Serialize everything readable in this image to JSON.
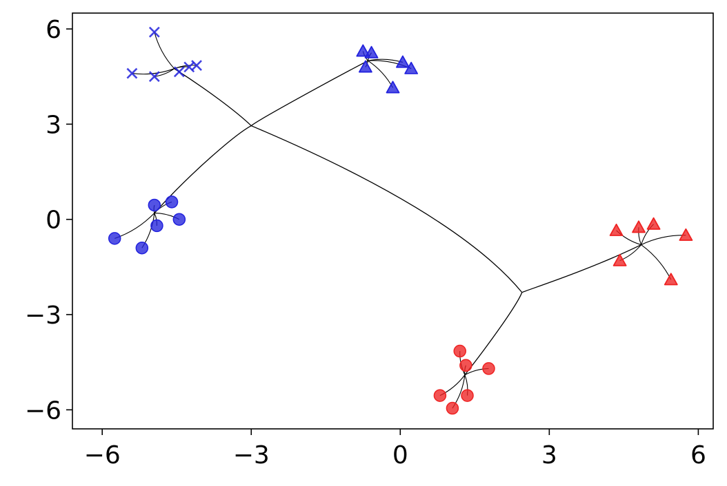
{
  "chart_data": {
    "type": "scatter",
    "xlim": [
      -6.6,
      6.3
    ],
    "ylim": [
      -6.6,
      6.5
    ],
    "xticks": [
      -6,
      -3,
      0,
      3,
      6
    ],
    "yticks": [
      -6,
      -3,
      0,
      3,
      6
    ],
    "xtick_labels": [
      "−6",
      "−3",
      "0",
      "3",
      "6"
    ],
    "ytick_labels": [
      "−6",
      "−3",
      "0",
      "3",
      "6"
    ],
    "grid": false,
    "colors": {
      "blue": "#2222dd",
      "red": "#ee2222",
      "tree": "#000000"
    },
    "series": [
      {
        "marker": "x",
        "color": "#2222dd",
        "hub": [
          -4.55,
          4.75
        ],
        "points": [
          [
            -4.95,
            5.9
          ],
          [
            -5.4,
            4.6
          ],
          [
            -4.95,
            4.5
          ],
          [
            -4.45,
            4.65
          ],
          [
            -4.25,
            4.8
          ],
          [
            -4.1,
            4.85
          ]
        ]
      },
      {
        "marker": "triangle",
        "color": "#2222dd",
        "hub": [
          -0.65,
          5.0
        ],
        "points": [
          [
            -0.75,
            5.3
          ],
          [
            -0.58,
            5.25
          ],
          [
            -0.7,
            4.8
          ],
          [
            0.05,
            4.95
          ],
          [
            0.22,
            4.75
          ],
          [
            -0.15,
            4.15
          ]
        ]
      },
      {
        "marker": "circle",
        "color": "#2222dd",
        "hub": [
          -4.95,
          0.2
        ],
        "points": [
          [
            -4.95,
            0.45
          ],
          [
            -4.6,
            0.55
          ],
          [
            -5.75,
            -0.6
          ],
          [
            -4.9,
            -0.2
          ],
          [
            -4.45,
            0.0
          ],
          [
            -5.2,
            -0.9
          ]
        ]
      },
      {
        "marker": "triangle",
        "color": "#ee2222",
        "hub": [
          4.85,
          -0.8
        ],
        "points": [
          [
            4.35,
            -0.35
          ],
          [
            4.8,
            -0.25
          ],
          [
            5.1,
            -0.15
          ],
          [
            5.75,
            -0.5
          ],
          [
            4.42,
            -1.3
          ],
          [
            5.45,
            -1.9
          ]
        ]
      },
      {
        "marker": "circle",
        "color": "#ee2222",
        "hub": [
          1.3,
          -4.9
        ],
        "points": [
          [
            1.2,
            -4.15
          ],
          [
            1.32,
            -4.6
          ],
          [
            1.78,
            -4.7
          ],
          [
            0.8,
            -5.55
          ],
          [
            1.35,
            -5.55
          ],
          [
            1.05,
            -5.95
          ]
        ]
      }
    ],
    "tree_edges": [
      [
        [
          -3.0,
          2.95
        ],
        [
          -3.3,
          3.4
        ],
        [
          -3.9,
          4.1
        ],
        [
          -4.55,
          4.75
        ]
      ],
      [
        [
          -3.0,
          2.95
        ],
        [
          -2.9,
          3.1
        ],
        [
          -1.5,
          4.3
        ],
        [
          -0.65,
          5.0
        ]
      ],
      [
        [
          -3.0,
          2.95
        ],
        [
          -3.3,
          2.7
        ],
        [
          -4.2,
          1.5
        ],
        [
          -4.95,
          0.2
        ]
      ],
      [
        [
          -3.0,
          2.95
        ],
        [
          -0.5,
          1.3
        ],
        [
          1.5,
          -0.5
        ],
        [
          2.45,
          -2.3
        ]
      ],
      [
        [
          2.45,
          -2.3
        ],
        [
          2.6,
          -2.2
        ],
        [
          3.8,
          -1.6
        ],
        [
          4.85,
          -0.8
        ]
      ],
      [
        [
          2.45,
          -2.3
        ],
        [
          2.35,
          -2.7
        ],
        [
          1.8,
          -3.9
        ],
        [
          1.3,
          -4.9
        ]
      ]
    ]
  }
}
